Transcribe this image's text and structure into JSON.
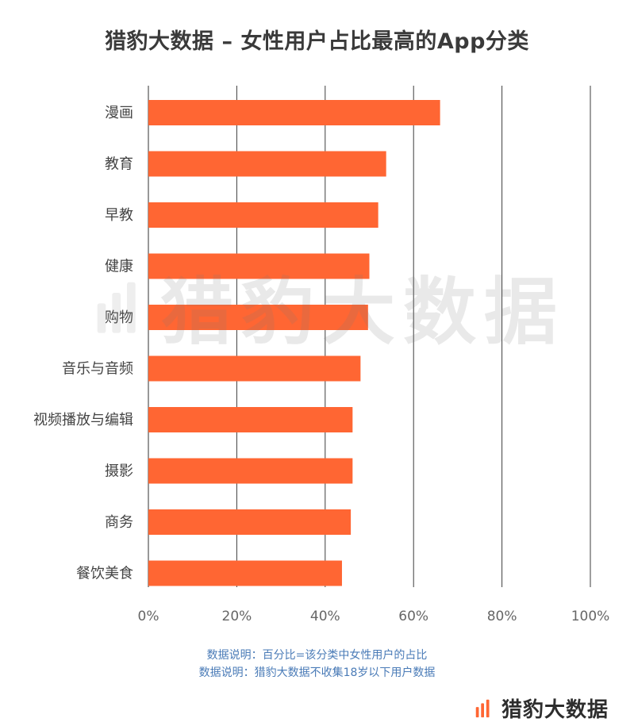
{
  "title": "猎豹大数据 – 女性用户占比最高的App分类",
  "chart_data": {
    "type": "bar",
    "orientation": "horizontal",
    "categories": [
      "漫画",
      "教育",
      "早教",
      "健康",
      "购物",
      "音乐与音频",
      "视频播放与编辑",
      "摄影",
      "商务",
      "餐饮美食"
    ],
    "values": [
      66,
      53.8,
      52,
      50,
      49.7,
      48,
      46.2,
      46.2,
      45.8,
      43.8
    ],
    "xlim": [
      0,
      100
    ],
    "x_ticks": [
      "0%",
      "20%",
      "40%",
      "60%",
      "80%",
      "100%"
    ],
    "grid": "vertical",
    "bar_color": "#ff6633"
  },
  "notes": [
    "数据说明：百分比=该分类中女性用户的占比",
    "数据说明：猎豹大数据不收集18岁以下用户数据"
  ],
  "brand": {
    "name": "猎豹大数据",
    "logo_color": "#ff6633",
    "icon": "cheetah-bars-logo"
  },
  "watermark": {
    "text": "猎豹大数据",
    "icon": "cheetah-bars-logo"
  }
}
